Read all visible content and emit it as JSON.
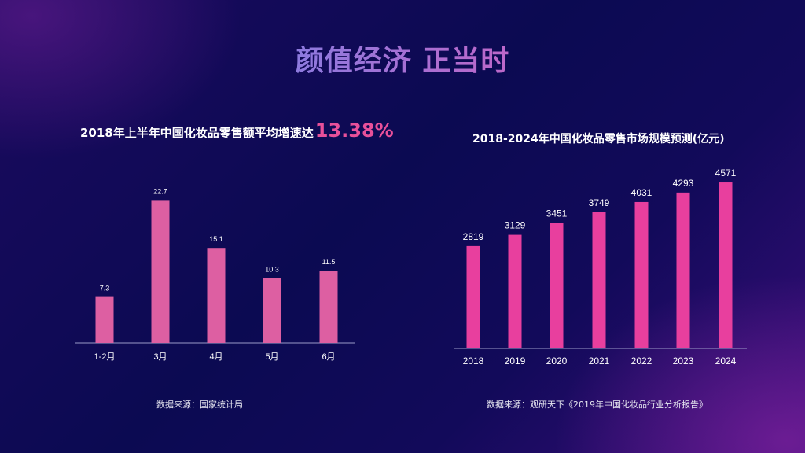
{
  "title": "颜值经济 正当时",
  "colors": {
    "left_bar": "#dd5fa2",
    "right_bar": "#e83f9e",
    "axis": "#9a9ac8"
  },
  "chart_data": [
    {
      "type": "bar",
      "title_prefix": "2018年上半年中国化妆品零售额平均增速达",
      "title_highlight": "13.38%",
      "categories": [
        "1-2月",
        "3月",
        "4月",
        "5月",
        "6月"
      ],
      "values": [
        7.3,
        22.7,
        15.1,
        10.3,
        11.5
      ],
      "value_labels": [
        "7.3",
        "22.7",
        "15.1",
        "10.3",
        "11.5"
      ],
      "ylim": [
        0,
        24.5
      ],
      "grid": false,
      "source": "数据来源：国家统计局"
    },
    {
      "type": "bar",
      "title": "2018-2024年中国化妆品零售市场规模预测(亿元)",
      "categories": [
        "2018",
        "2019",
        "2020",
        "2021",
        "2022",
        "2023",
        "2024"
      ],
      "values": [
        2819,
        3129,
        3451,
        3749,
        4031,
        4293,
        4571
      ],
      "value_labels": [
        "2819",
        "3129",
        "3451",
        "3749",
        "4031",
        "4293",
        "4571"
      ],
      "ylim": [
        0,
        5200
      ],
      "grid": false,
      "source": "数据来源：观研天下《2019年中国化妆品行业分析报告》"
    }
  ]
}
